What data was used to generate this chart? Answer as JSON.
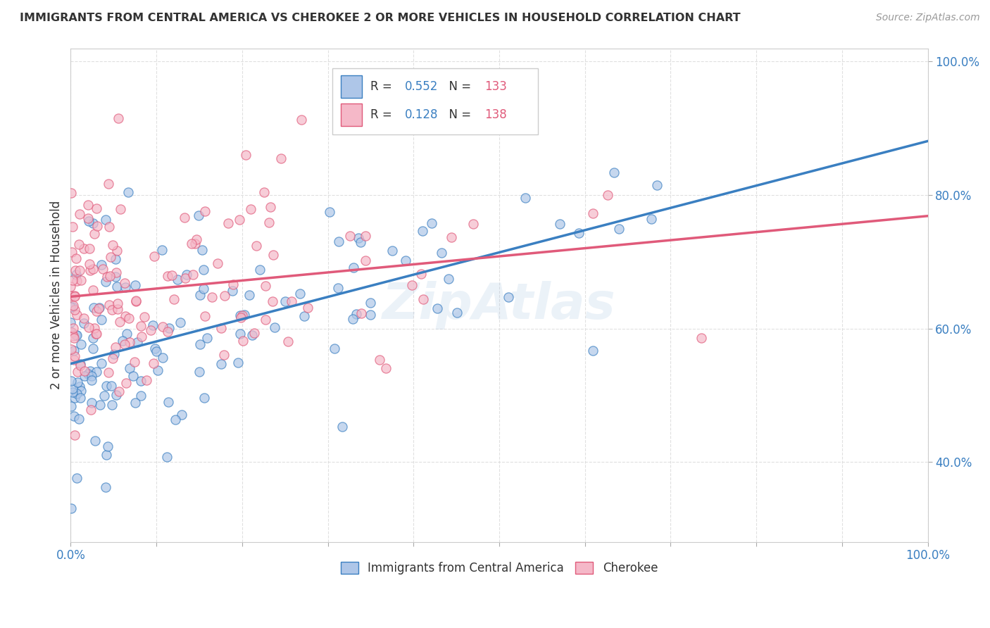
{
  "title": "IMMIGRANTS FROM CENTRAL AMERICA VS CHEROKEE 2 OR MORE VEHICLES IN HOUSEHOLD CORRELATION CHART",
  "source": "Source: ZipAtlas.com",
  "ylabel": "2 or more Vehicles in Household",
  "watermark": "ZipAtlas",
  "legend_blue_label": "Immigrants from Central America",
  "legend_pink_label": "Cherokee",
  "blue_R": 0.552,
  "blue_N": 133,
  "pink_R": 0.128,
  "pink_N": 138,
  "blue_color": "#aec6e8",
  "pink_color": "#f5b8c8",
  "blue_line_color": "#3a7fc1",
  "pink_line_color": "#e05a7a",
  "title_color": "#333333",
  "source_color": "#999999",
  "R_value_color": "#3a7fc1",
  "N_value_color": "#e05a7a",
  "background_color": "#ffffff",
  "grid_color": "#dddddd",
  "tick_color": "#3a7fc1",
  "ylim_min": 0.28,
  "ylim_max": 1.02,
  "xlim_min": 0.0,
  "xlim_max": 1.0,
  "blue_intercept": 0.555,
  "blue_slope": 0.315,
  "pink_intercept": 0.648,
  "pink_slope": 0.078
}
